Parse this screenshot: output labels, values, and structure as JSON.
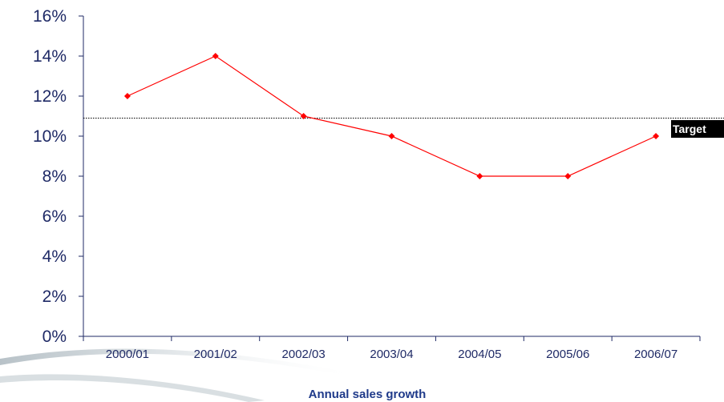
{
  "chart_data": {
    "type": "line",
    "categories": [
      "2000/01",
      "2001/02",
      "2002/03",
      "2003/04",
      "2004/05",
      "2005/06",
      "2006/07"
    ],
    "values": [
      12,
      14,
      11,
      10,
      8,
      8,
      10
    ],
    "y_ticks": [
      "0%",
      "2%",
      "4%",
      "6%",
      "8%",
      "10%",
      "12%",
      "14%",
      "16%"
    ],
    "ylim": [
      0,
      16
    ],
    "xlabel": "Annual sales growth",
    "target": {
      "label": "Target",
      "value": 10.9,
      "style": "dotted",
      "color": "#000000"
    },
    "series_color": "#ff0000",
    "axis_color": "#1f2a66",
    "tick_text_color": "#1f2a66",
    "xlabel_color": "#1f3a8a",
    "grid": false,
    "legend": "none"
  }
}
